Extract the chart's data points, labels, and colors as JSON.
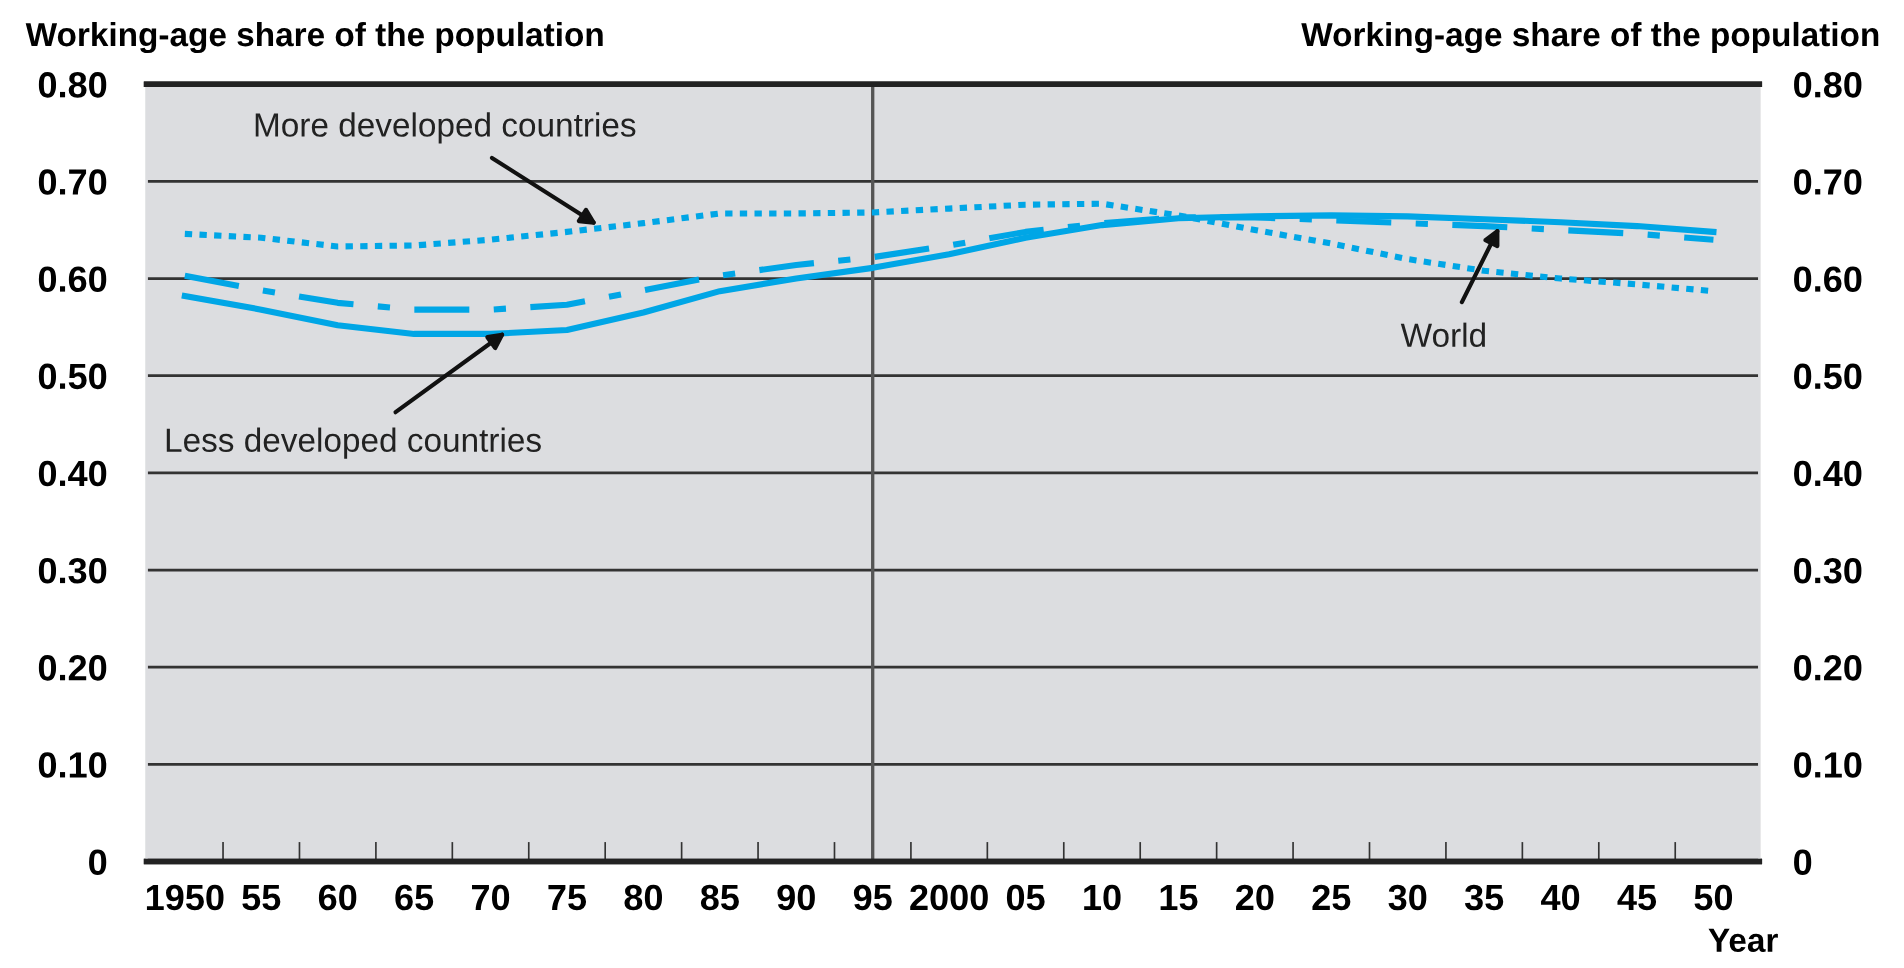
{
  "chart_data": {
    "type": "line",
    "x": [
      1950,
      1955,
      1960,
      1965,
      1970,
      1975,
      1980,
      1985,
      1990,
      1995,
      2000,
      2005,
      2010,
      2015,
      2020,
      2025,
      2030,
      2035,
      2040,
      2045,
      2050
    ],
    "series": [
      {
        "color": "#00a6e6",
        "line_style": "dotted",
        "values": [
          0.646,
          0.642,
          0.633,
          0.634,
          0.64,
          0.648,
          0.657,
          0.667,
          0.667,
          0.668,
          0.672,
          0.676,
          0.677,
          0.665,
          0.65,
          0.636,
          0.62,
          0.608,
          0.6,
          0.594,
          0.587
        ]
      },
      {
        "color": "#00a6e6",
        "line_style": "solid",
        "values": [
          0.582,
          0.568,
          0.552,
          0.543,
          0.543,
          0.547,
          0.565,
          0.587,
          0.6,
          0.611,
          0.625,
          0.642,
          0.655,
          0.662,
          0.664,
          0.665,
          0.664,
          0.661,
          0.658,
          0.654,
          0.648
        ]
      },
      {
        "color": "#00a6e6",
        "line_style": "dashdot",
        "values": [
          0.603,
          0.588,
          0.575,
          0.568,
          0.568,
          0.573,
          0.588,
          0.603,
          0.614,
          0.622,
          0.634,
          0.648,
          0.657,
          0.663,
          0.663,
          0.66,
          0.657,
          0.654,
          0.65,
          0.646,
          0.64
        ]
      }
    ],
    "xlabel": "Year",
    "ylabel": "Working-age share of the population",
    "y2label": "Working-age share of the population",
    "xlim": [
      1947.5,
      2053
    ],
    "xticks": [
      {
        "value": 1950,
        "label": "1950"
      },
      {
        "value": 1955,
        "label": "55"
      },
      {
        "value": 1960,
        "label": "60"
      },
      {
        "value": 1965,
        "label": "65"
      },
      {
        "value": 1970,
        "label": "70"
      },
      {
        "value": 1975,
        "label": "75"
      },
      {
        "value": 1980,
        "label": "80"
      },
      {
        "value": 1985,
        "label": "85"
      },
      {
        "value": 1990,
        "label": "90"
      },
      {
        "value": 1995,
        "label": "95"
      },
      {
        "value": 2000,
        "label": "2000"
      },
      {
        "value": 2005,
        "label": "05"
      },
      {
        "value": 2010,
        "label": "10"
      },
      {
        "value": 2015,
        "label": "15"
      },
      {
        "value": 2020,
        "label": "20"
      },
      {
        "value": 2025,
        "label": "25"
      },
      {
        "value": 2030,
        "label": "30"
      },
      {
        "value": 2035,
        "label": "35"
      },
      {
        "value": 2040,
        "label": "40"
      },
      {
        "value": 2045,
        "label": "45"
      },
      {
        "value": 2050,
        "label": "50"
      },
      {
        "value": 1952.5,
        "label": null
      },
      {
        "value": 1957.5,
        "label": null
      },
      {
        "value": 1962.5,
        "label": null
      },
      {
        "value": 1967.5,
        "label": null
      },
      {
        "value": 1972.5,
        "label": null
      },
      {
        "value": 1977.5,
        "label": null
      },
      {
        "value": 1982.5,
        "label": null
      },
      {
        "value": 1987.5,
        "label": null
      },
      {
        "value": 1992.5,
        "label": null
      },
      {
        "value": 1997.5,
        "label": null
      },
      {
        "value": 2002.5,
        "label": null
      },
      {
        "value": 2007.5,
        "label": null
      },
      {
        "value": 2012.5,
        "label": null
      },
      {
        "value": 2017.5,
        "label": null
      },
      {
        "value": 2022.5,
        "label": null
      },
      {
        "value": 2027.5,
        "label": null
      },
      {
        "value": 2032.5,
        "label": null
      },
      {
        "value": 2037.5,
        "label": null
      },
      {
        "value": 2042.5,
        "label": null
      },
      {
        "value": 2047.5,
        "label": null
      }
    ],
    "ylim": [
      0,
      0.8
    ],
    "yticks": [
      0,
      {
        "value": 0.1,
        "label": "0.10"
      },
      {
        "value": 0.2,
        "label": "0.20"
      },
      {
        "value": 0.3,
        "label": "0.30"
      },
      {
        "value": 0.4,
        "label": "0.40"
      },
      {
        "value": 0.5,
        "label": "0.50"
      },
      {
        "value": 0.6,
        "label": "0.60"
      },
      {
        "value": 0.7,
        "label": "0.70"
      },
      {
        "value": 0.8,
        "label": "0.80"
      }
    ],
    "y2lim": [
      0,
      0.8
    ],
    "y2ticks": [
      0,
      {
        "value": 0.1,
        "label": "0.10"
      },
      {
        "value": 0.2,
        "label": "0.20"
      },
      {
        "value": 0.3,
        "label": "0.30"
      },
      {
        "value": 0.4,
        "label": "0.40"
      },
      {
        "value": 0.5,
        "label": "0.50"
      },
      {
        "value": 0.6,
        "label": "0.60"
      },
      {
        "value": 0.7,
        "label": "0.70"
      },
      {
        "value": 0.8,
        "label": "0.80"
      }
    ],
    "grid": "y",
    "ref_lines": [
      {
        "axis": "x",
        "value": 1995,
        "color": "#555555"
      }
    ],
    "annotations": [
      {
        "text": "More developed countries",
        "x": 1977,
        "y": 0.655
      },
      {
        "text": "Less developed countries",
        "x": 1971,
        "y": 0.545
      },
      {
        "text": "World",
        "x": 2036,
        "y": 0.653
      }
    ]
  }
}
